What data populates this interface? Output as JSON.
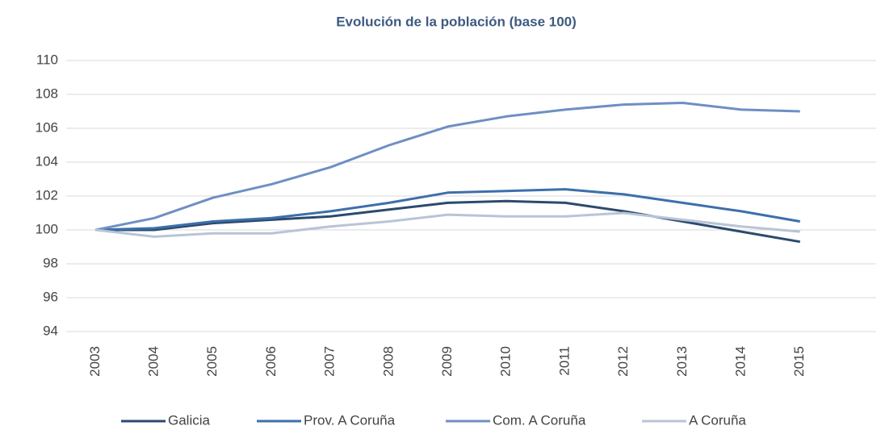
{
  "chart_data": {
    "type": "line",
    "title": "Evolución de la población (base 100)",
    "categories": [
      "2003",
      "2004",
      "2005",
      "2006",
      "2007",
      "2008",
      "2009",
      "2010",
      "2011",
      "2012",
      "2013",
      "2014",
      "2015"
    ],
    "series": [
      {
        "name": "Galicia",
        "color": "#2b4a6e",
        "values": [
          100,
          100.0,
          100.4,
          100.6,
          100.8,
          101.2,
          101.6,
          101.7,
          101.6,
          101.1,
          100.5,
          99.9,
          99.3
        ]
      },
      {
        "name": "Prov. A Coruña",
        "color": "#3d6faa",
        "values": [
          100,
          100.1,
          100.5,
          100.7,
          101.1,
          101.6,
          102.2,
          102.3,
          102.4,
          102.1,
          101.6,
          101.1,
          100.5
        ]
      },
      {
        "name": "Com. A Coruña",
        "color": "#6e8fc4",
        "values": [
          100,
          100.7,
          101.9,
          102.7,
          103.7,
          105.0,
          106.1,
          106.7,
          107.1,
          107.4,
          107.5,
          107.1,
          107.0
        ]
      },
      {
        "name": "A Coruña",
        "color": "#b9c4d6",
        "values": [
          100,
          99.6,
          99.8,
          99.8,
          100.2,
          100.5,
          100.9,
          100.8,
          100.8,
          101.0,
          100.6,
          100.2,
          99.9
        ]
      }
    ],
    "ylim": [
      94,
      110
    ],
    "yticks": [
      94,
      96,
      98,
      100,
      102,
      104,
      106,
      108,
      110
    ],
    "grid": true,
    "legend": "bottom"
  }
}
